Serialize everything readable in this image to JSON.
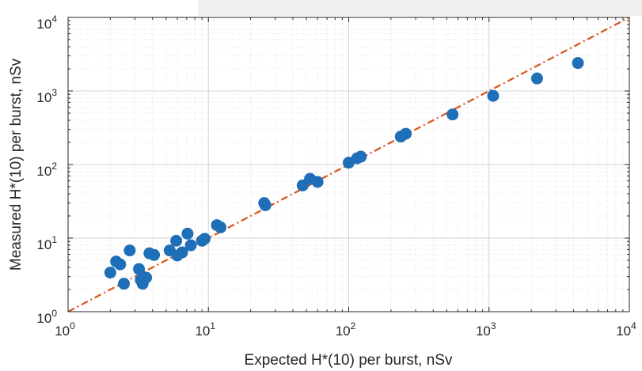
{
  "chart_data": {
    "type": "scatter",
    "xlabel": "Expected H*(10) per burst, nSv",
    "ylabel": "Measured H*(10) per burst, nSv",
    "xscale": "log",
    "yscale": "log",
    "xlim": [
      1,
      10000
    ],
    "ylim": [
      1,
      10000
    ],
    "grid": true,
    "minor_grid": true,
    "x_ticks": [
      1,
      10,
      100,
      1000,
      10000
    ],
    "y_ticks": [
      1,
      10,
      100,
      1000,
      10000
    ],
    "tick_base": "10",
    "tick_exponents": [
      "0",
      "1",
      "2",
      "3",
      "4"
    ],
    "series": [
      {
        "marker": "circle",
        "color": "#1f6fb8",
        "points": [
          [
            2.0,
            3.4
          ],
          [
            2.2,
            4.8
          ],
          [
            2.35,
            4.4
          ],
          [
            2.5,
            2.4
          ],
          [
            2.75,
            6.8
          ],
          [
            3.2,
            3.8
          ],
          [
            3.3,
            2.7
          ],
          [
            3.4,
            2.4
          ],
          [
            3.6,
            2.9
          ],
          [
            3.8,
            6.2
          ],
          [
            4.1,
            5.9
          ],
          [
            5.3,
            6.8
          ],
          [
            5.9,
            9.2
          ],
          [
            6.0,
            5.8
          ],
          [
            6.5,
            6.4
          ],
          [
            7.1,
            11.5
          ],
          [
            7.5,
            8.0
          ],
          [
            9.0,
            9.2
          ],
          [
            9.4,
            9.8
          ],
          [
            11.5,
            15.0
          ],
          [
            12.2,
            14.0
          ],
          [
            25.0,
            30.0
          ],
          [
            25.5,
            28.0
          ],
          [
            47.0,
            52.0
          ],
          [
            53.0,
            64.0
          ],
          [
            60.0,
            58.0
          ],
          [
            100.0,
            106.0
          ],
          [
            115.0,
            122.0
          ],
          [
            122.0,
            128.0
          ],
          [
            235.0,
            240.0
          ],
          [
            255.0,
            262.0
          ],
          [
            550.0,
            480.0
          ],
          [
            1070.0,
            860.0
          ],
          [
            2200.0,
            1480.0
          ],
          [
            4300.0,
            2400.0
          ]
        ]
      },
      {
        "type": "line",
        "style": "dash-dot",
        "color": "#d95319",
        "x": [
          1,
          10000
        ],
        "y": [
          1,
          10000
        ]
      }
    ]
  }
}
